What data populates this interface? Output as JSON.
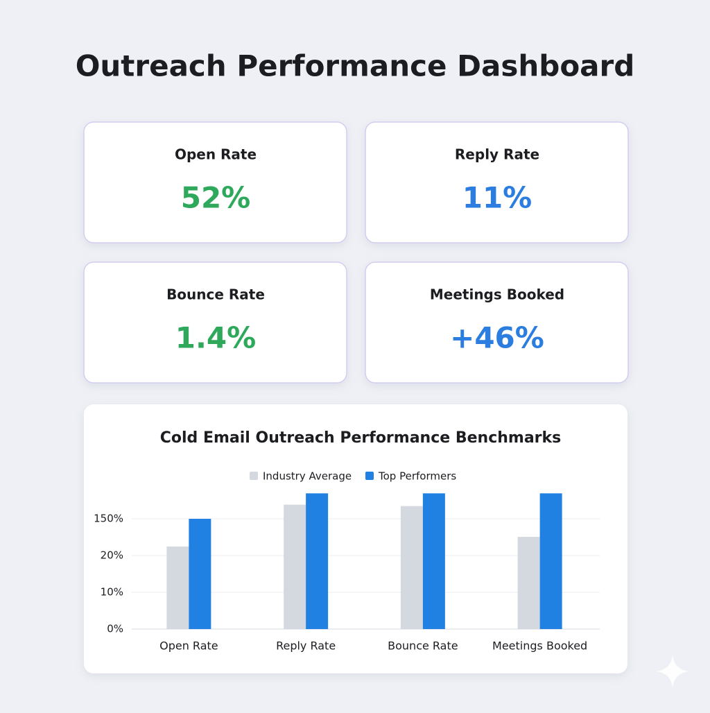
{
  "header": {
    "title": "Outreach Performance Dashboard"
  },
  "cards": [
    {
      "label": "Open Rate",
      "value": "52%",
      "color": "#2ea85a"
    },
    {
      "label": "Reply Rate",
      "value": "11%",
      "color": "#2b7de0"
    },
    {
      "label": "Bounce Rate",
      "value": "1.4%",
      "color": "#2ea85a"
    },
    {
      "label": "Meetings Booked",
      "value": "+46%",
      "color": "#2b7de0"
    }
  ],
  "chart_data": {
    "type": "bar",
    "title": "Cold Email Outreach Performance Benchmarks",
    "categories": [
      "Open Rate",
      "Reply Rate",
      "Bounce Rate",
      "Meetings Booked"
    ],
    "series": [
      {
        "name": "Industry Average",
        "color": "#d4d9e0",
        "values": [
          52,
          200,
          195,
          86
        ]
      },
      {
        "name": "Top Performers",
        "color": "#2181e2",
        "values": [
          150,
          240,
          240,
          240
        ]
      }
    ],
    "ylim": [
      0,
      240
    ],
    "yticks": [
      {
        "value": 0,
        "label": "0%"
      },
      {
        "value": 10,
        "label": "10%"
      },
      {
        "value": 20,
        "label": "20%"
      },
      {
        "value": 150,
        "label": "150%"
      }
    ],
    "grid": true,
    "legend": "top"
  }
}
